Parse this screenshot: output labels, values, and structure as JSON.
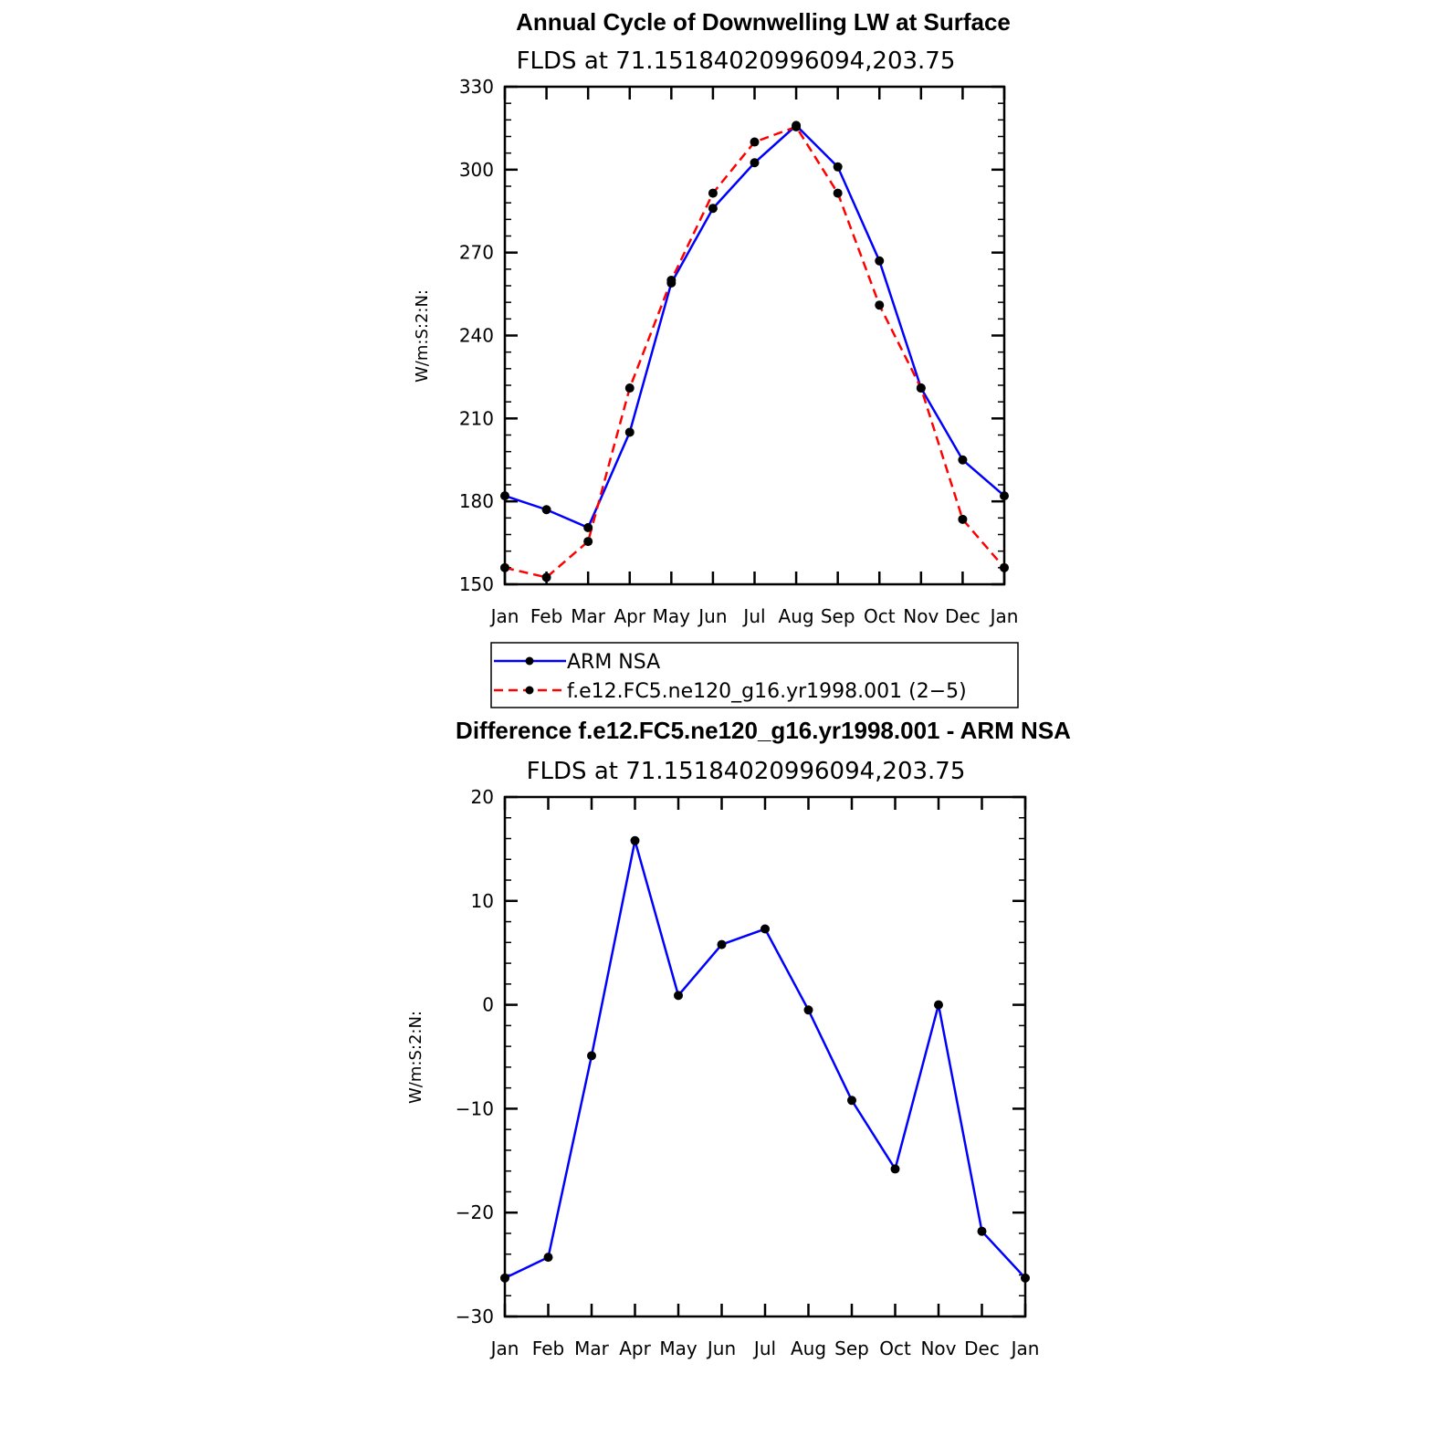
{
  "chart_data": [
    {
      "type": "line",
      "title": "Annual Cycle of Downwelling LW at Surface",
      "subtitle": "FLDS at 71.15184020996094,203.75",
      "ylabel": "W/m:S:2:N:",
      "xlabel": "",
      "categories": [
        "Jan",
        "Feb",
        "Mar",
        "Apr",
        "May",
        "Jun",
        "Jul",
        "Aug",
        "Sep",
        "Oct",
        "Nov",
        "Dec",
        "Jan"
      ],
      "ylim": [
        150,
        330
      ],
      "yticks": [
        150,
        180,
        210,
        240,
        270,
        300,
        330
      ],
      "series": [
        {
          "name": "ARM NSA",
          "color": "#0000ff",
          "dash": "solid",
          "values": [
            182,
            177,
            170.5,
            205,
            259,
            286,
            302.5,
            316,
            301,
            267,
            221,
            195,
            182
          ]
        },
        {
          "name": "f.e12.FC5.ne120_g16.yr1998.001 (2−5)",
          "color": "#ff0000",
          "dash": "dashed",
          "values": [
            156,
            152.5,
            165.5,
            221,
            260,
            291.5,
            310,
            315.5,
            291.5,
            251,
            221,
            173.5,
            156
          ]
        }
      ],
      "legend": "below"
    },
    {
      "type": "line",
      "title": "Difference f.e12.FC5.ne120_g16.yr1998.001 - ARM NSA",
      "subtitle": "FLDS at 71.15184020996094,203.75",
      "ylabel": "W/m:S:2:N:",
      "xlabel": "",
      "categories": [
        "Jan",
        "Feb",
        "Mar",
        "Apr",
        "May",
        "Jun",
        "Jul",
        "Aug",
        "Sep",
        "Oct",
        "Nov",
        "Dec",
        "Jan"
      ],
      "ylim": [
        -30,
        20
      ],
      "yticks": [
        -30,
        -20,
        -10,
        0,
        10,
        20
      ],
      "ytick_labels": [
        "−30",
        "−20",
        "−10",
        "0",
        "10",
        "20"
      ],
      "series": [
        {
          "name": "Difference",
          "color": "#0000ff",
          "dash": "solid",
          "values": [
            -26.3,
            -24.3,
            -4.9,
            15.8,
            0.9,
            5.8,
            7.3,
            -0.5,
            -9.2,
            -15.8,
            0,
            -21.8,
            -26.3
          ]
        }
      ]
    }
  ]
}
